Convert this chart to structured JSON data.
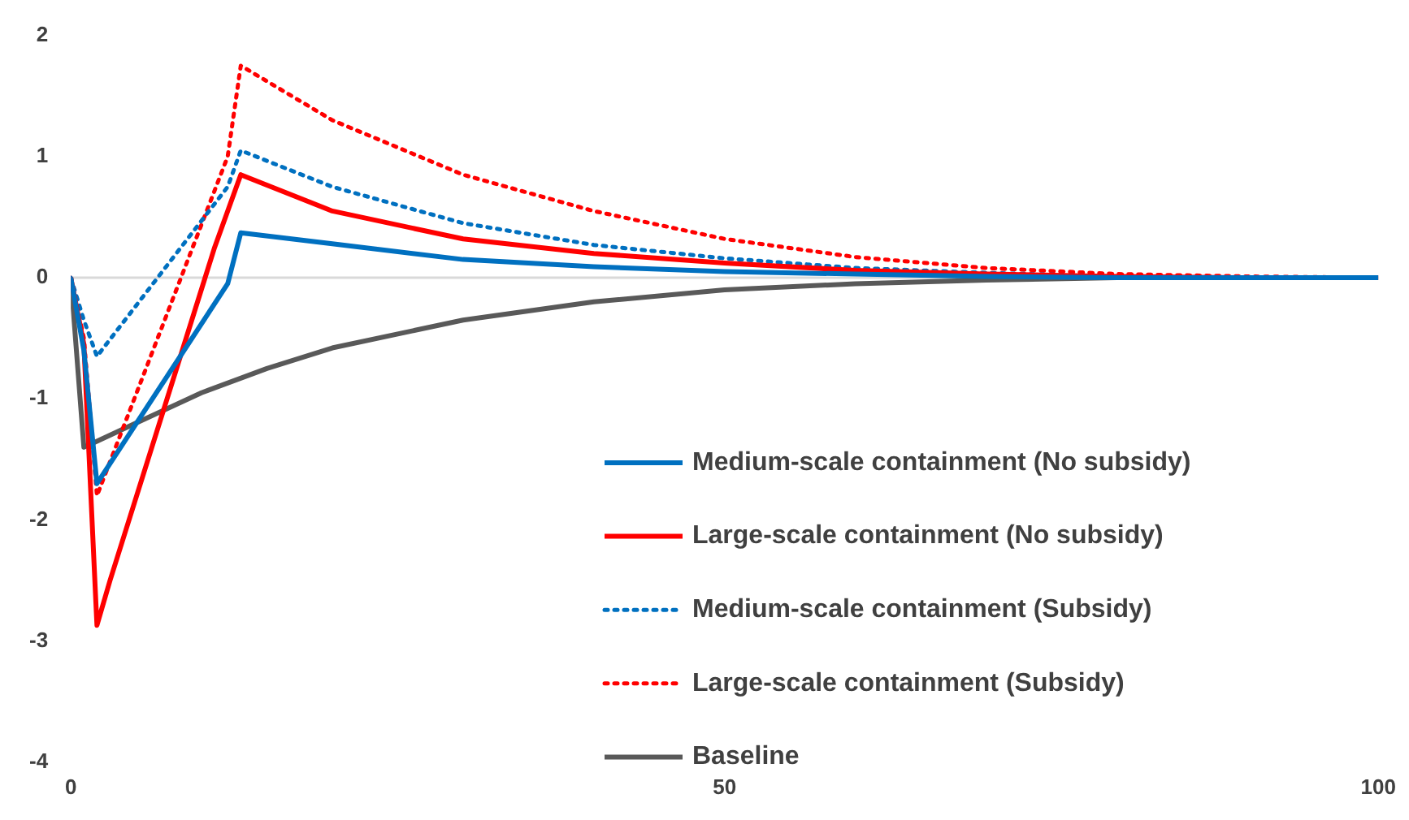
{
  "chart_data": {
    "type": "line",
    "xlim": [
      0,
      100
    ],
    "xticks": [
      0,
      50,
      100
    ],
    "ylim": [
      -4,
      2
    ],
    "yticks": [
      -4,
      -3,
      -2,
      -1,
      0,
      1,
      2
    ],
    "grid": false,
    "legend": "bottom right",
    "marker": "none",
    "ref_lines": [
      {
        "axis": "y",
        "value": 0,
        "color": "#d9d9d9"
      }
    ],
    "series": [
      {
        "name": "Medium-scale containment (No subsidy)",
        "color": "#0070c0",
        "line_style": "solid",
        "x": [
          0,
          1,
          2,
          12,
          13,
          20,
          30,
          40,
          50,
          60,
          70,
          80,
          100
        ],
        "values": [
          0,
          -0.6,
          -1.7,
          -0.05,
          0.37,
          0.28,
          0.15,
          0.09,
          0.05,
          0.03,
          0.01,
          0,
          0
        ]
      },
      {
        "name": "Large-scale containment (No subsidy)",
        "color": "#ff0000",
        "line_style": "solid",
        "x": [
          0,
          1,
          2,
          3,
          11,
          13,
          20,
          30,
          40,
          50,
          60,
          70,
          80,
          90,
          100
        ],
        "values": [
          0,
          -0.55,
          -2.87,
          -2.5,
          0.25,
          0.85,
          0.55,
          0.32,
          0.2,
          0.12,
          0.06,
          0.03,
          0.01,
          0,
          0
        ]
      },
      {
        "name": "Medium-scale containment (Subsidy)",
        "color": "#0070c0",
        "line_style": "dotted",
        "x": [
          0,
          1,
          2,
          12,
          13,
          20,
          30,
          40,
          50,
          60,
          70,
          80,
          90,
          100
        ],
        "values": [
          0,
          -0.35,
          -0.65,
          0.75,
          1.05,
          0.75,
          0.45,
          0.27,
          0.16,
          0.08,
          0.04,
          0.01,
          0,
          0
        ]
      },
      {
        "name": "Large-scale containment (Subsidy)",
        "color": "#ff0000",
        "line_style": "dotted",
        "x": [
          0,
          1,
          2,
          12,
          13,
          20,
          30,
          40,
          50,
          60,
          70,
          80,
          90,
          100
        ],
        "values": [
          0,
          -0.5,
          -1.8,
          1,
          1.75,
          1.3,
          0.85,
          0.55,
          0.32,
          0.17,
          0.08,
          0.03,
          0.01,
          0
        ]
      },
      {
        "name": "Baseline",
        "color": "#595959",
        "line_style": "solid",
        "x": [
          0,
          1,
          2,
          5,
          10,
          15,
          20,
          30,
          40,
          50,
          60,
          70,
          80,
          100
        ],
        "values": [
          0,
          -1.4,
          -1.35,
          -1.2,
          -0.95,
          -0.75,
          -0.58,
          -0.35,
          -0.2,
          -0.1,
          -0.05,
          -0.02,
          0,
          0
        ]
      }
    ]
  }
}
